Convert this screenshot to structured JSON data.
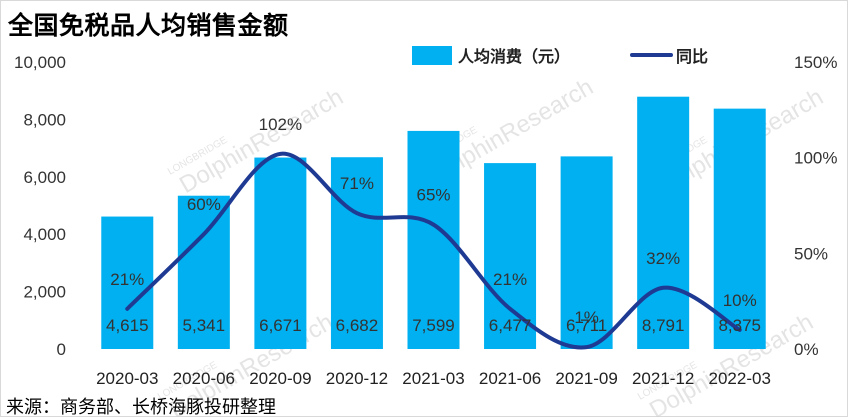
{
  "title": "全国免税品人均销售金额",
  "source": "来源：商务部、长桥海豚投研整理",
  "watermark": {
    "brand": "LONGBRIDGE",
    "name": "DolphinResearch"
  },
  "colors": {
    "bar": "#00b0f0",
    "line": "#1f3a93"
  },
  "chart_data": {
    "type": "bar",
    "categories": [
      "2020-03",
      "2020-06",
      "2020-09",
      "2020-12",
      "2021-03",
      "2021-06",
      "2021-09",
      "2021-12",
      "2022-03"
    ],
    "series": [
      {
        "name": "人均消费（元）",
        "type": "bar",
        "axis": "left",
        "values": [
          4615,
          5341,
          6671,
          6682,
          7599,
          6477,
          6711,
          8791,
          8375
        ],
        "labels": [
          "4,615",
          "5,341",
          "6,671",
          "6,682",
          "7,599",
          "6,477",
          "6,711",
          "8,791",
          "8,375"
        ]
      },
      {
        "name": "同比",
        "type": "line",
        "axis": "right",
        "smooth": true,
        "values": [
          21,
          60,
          102,
          71,
          65,
          21,
          1,
          32,
          10
        ],
        "labels": [
          "21%",
          "60%",
          "102%",
          "71%",
          "65%",
          "21%",
          "1%",
          "32%",
          "10%"
        ]
      }
    ],
    "y_left": {
      "min": 0,
      "max": 10000,
      "ticks": [
        "0",
        "2,000",
        "4,000",
        "6,000",
        "8,000",
        "10,000"
      ]
    },
    "y_right": {
      "min": 0,
      "max": 150,
      "ticks": [
        "0%",
        "50%",
        "100%",
        "150%"
      ]
    },
    "legend_position": "top",
    "grid": false
  }
}
